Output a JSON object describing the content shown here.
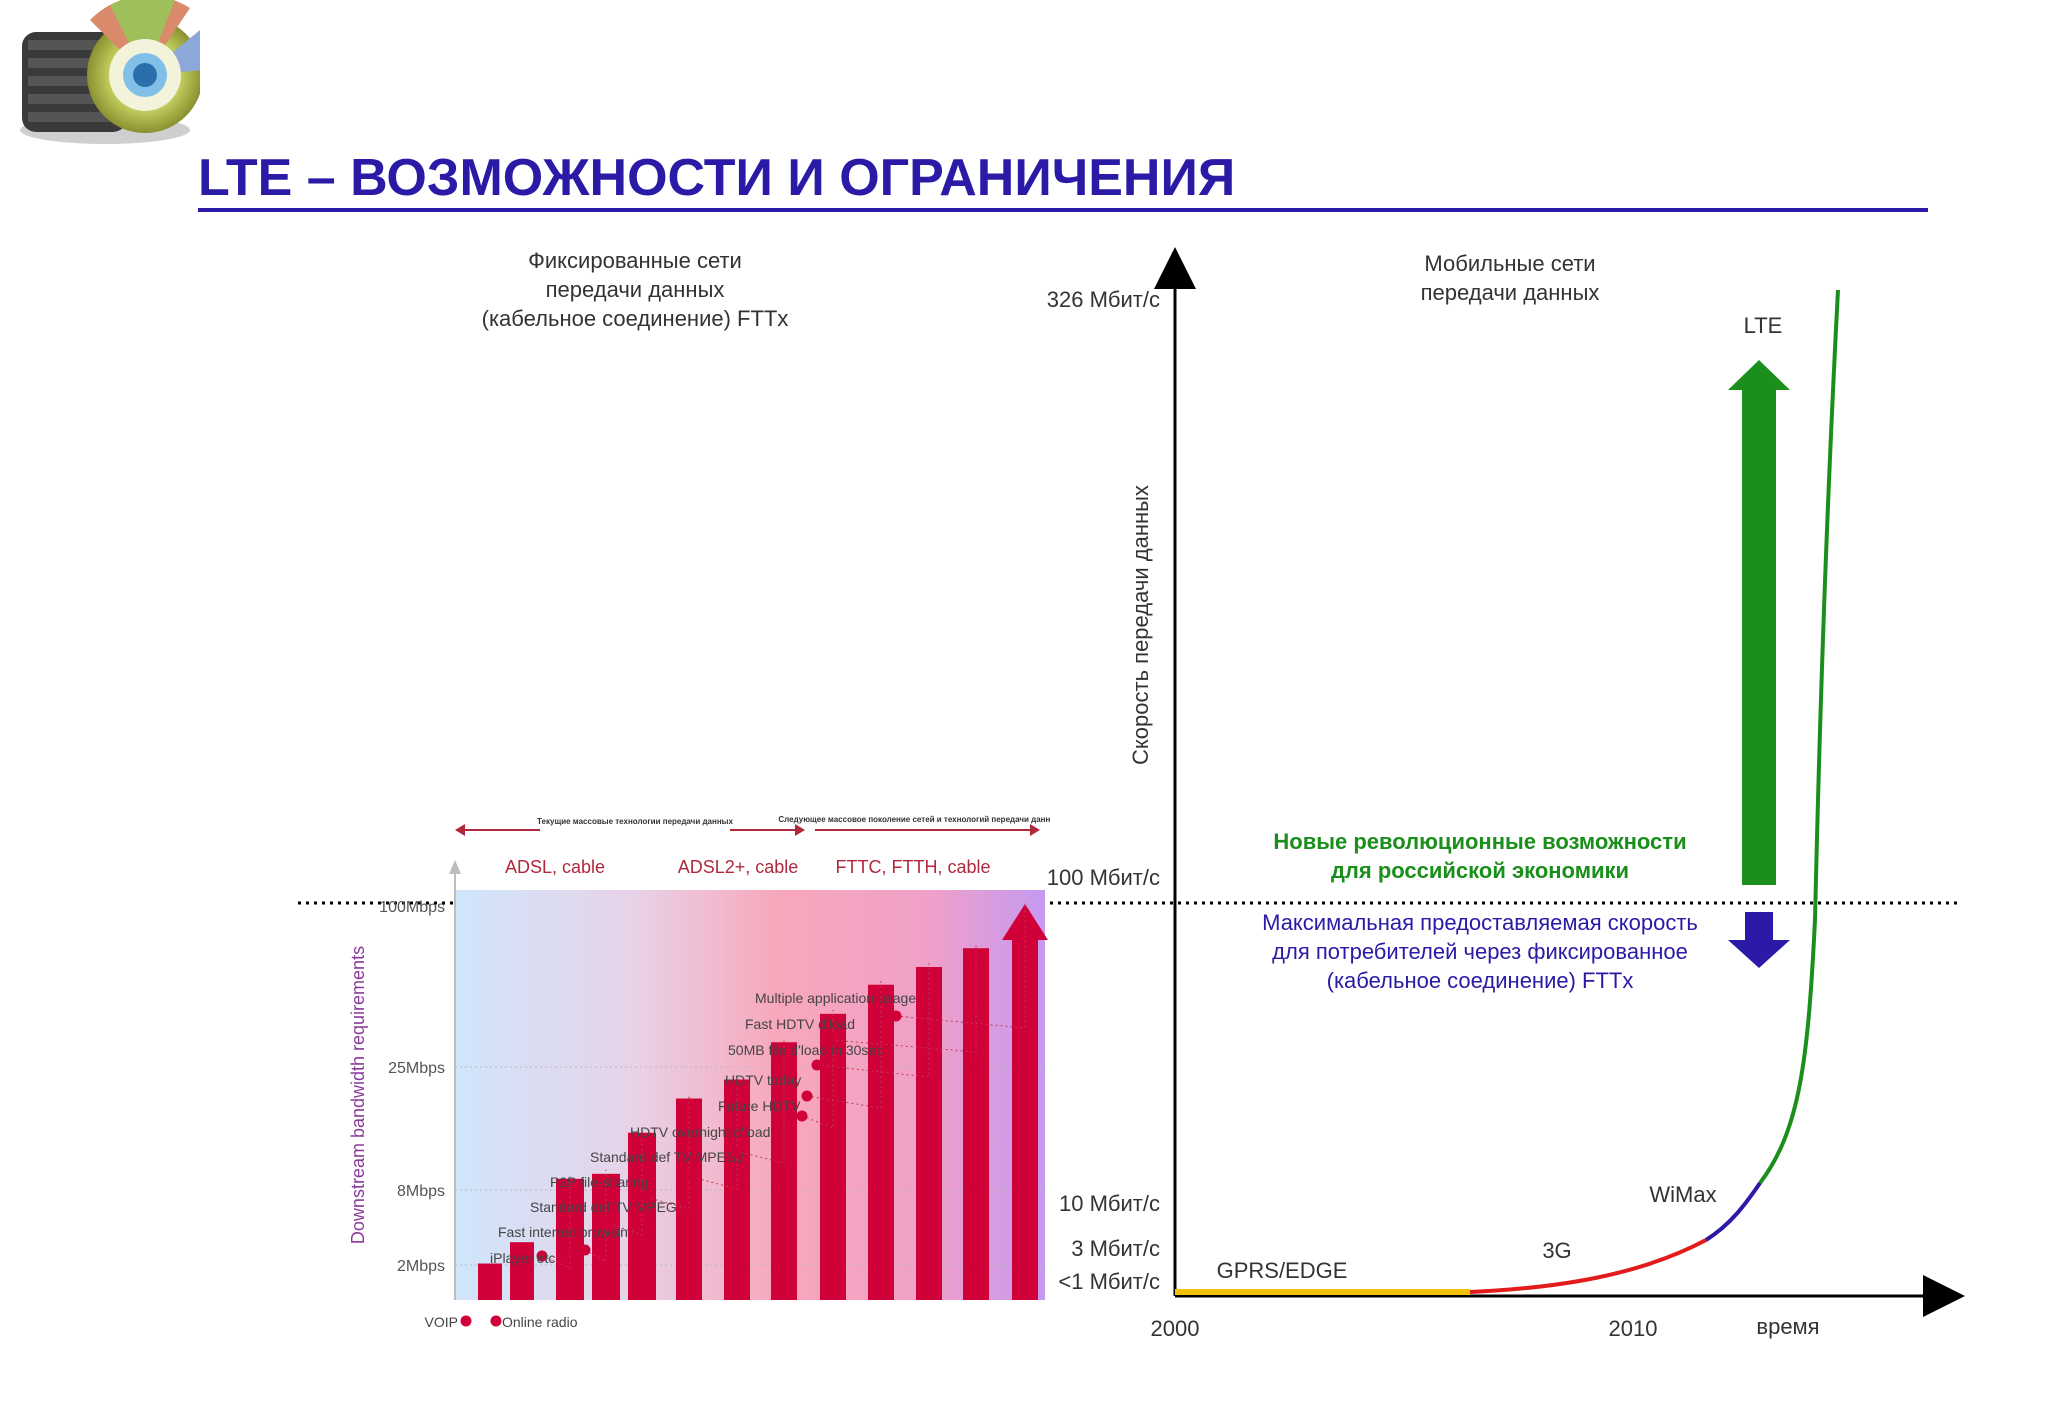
{
  "slide": {
    "title": "LTE – ВОЗМОЖНОСТИ И ОГРАНИЧЕНИЯ",
    "fixed_caption": [
      "Фиксированные сети",
      "передачи данных",
      "(кабельное соединение) FTTx"
    ],
    "mobile_caption": [
      "Мобильные сети",
      "передачи данных"
    ],
    "new_opportunities": [
      "Новые революционные возможности",
      "для российской экономики"
    ],
    "max_fixed_speed": [
      "Максимальная предоставляемая скорость",
      "для потребителей через фиксированное",
      "(кабельное соединение) FTTx"
    ],
    "colors": {
      "title": "#2a1aa6",
      "green": "#1b8f1b",
      "blue": "#2a1aa6",
      "bars": "#d00038"
    }
  },
  "chart_data": [
    {
      "type": "line",
      "title": "",
      "ylabel": "Скорость передачи данных",
      "xlabel": "время",
      "x_ticks": [
        "2000",
        "2010"
      ],
      "y_ticks": [
        "<1 Мбит/с",
        "3 Мбит/с",
        "10 Мбит/с",
        "100 Мбит/с",
        "326 Мбит/с"
      ],
      "segments": [
        {
          "name": "GPRS/EDGE",
          "color": "#f4c20d",
          "points": [
            [
              2000,
              0.5
            ],
            [
              2005,
              0.5
            ]
          ]
        },
        {
          "name": "3G",
          "color": "#e31b1b",
          "points": [
            [
              2005,
              0.5
            ],
            [
              2007,
              1.2
            ],
            [
              2009,
              2.2
            ],
            [
              2010.5,
              3.2
            ]
          ]
        },
        {
          "name": "WiMax",
          "color": "#2a1aa6",
          "points": [
            [
              2010.5,
              3.2
            ],
            [
              2011,
              5.5
            ],
            [
              2011.5,
              9
            ]
          ]
        },
        {
          "name": "LTE",
          "color": "#1b8f1b",
          "points": [
            [
              2011.5,
              9
            ],
            [
              2012,
              20
            ],
            [
              2012.3,
              60
            ],
            [
              2012.5,
              100
            ],
            [
              2012.7,
              200
            ],
            [
              2012.9,
              326
            ]
          ]
        }
      ],
      "reference_line": {
        "value": "100 Мбит/с",
        "style": "dotted"
      },
      "arrows": [
        {
          "direction": "up",
          "color": "#1b8f1b"
        },
        {
          "direction": "down",
          "color": "#2a1aa6"
        }
      ]
    },
    {
      "type": "bar",
      "title": "",
      "ylabel": "Downstream bandwidth requirements",
      "y_ticks": [
        "2Mbps",
        "8Mbps",
        "25Mbps",
        "100Mbps"
      ],
      "eras": [
        {
          "label": "ADSL, cable",
          "note": "Текущие массовые технологии передачи данных"
        },
        {
          "label": "ADSL2+, cable",
          "note": ""
        },
        {
          "label": "FTTC, FTTH, cable",
          "note": "Следующее массовое поколение сетей и технологий передачи данных"
        }
      ],
      "applications": [
        {
          "label": "VOIP",
          "value": 0.1
        },
        {
          "label": "Online radio",
          "value": 0.15
        },
        {
          "label": "iPlayer etc",
          "value": 0.5
        },
        {
          "label": "Fast internet browsing",
          "value": 0.55
        },
        {
          "label": "Standard def TV MPEG4",
          "value": 1.2
        },
        {
          "label": "P2P file-sharing",
          "value": 2.3
        },
        {
          "label": "Standard def TV MPEG2",
          "value": 3.3
        },
        {
          "label": "HDTV overnight d'load",
          "value": 6.7
        },
        {
          "label": "Future HDTV",
          "value": 11.5
        },
        {
          "label": "HDTV today",
          "value": 20
        },
        {
          "label": "50MB file d'load in 30sec",
          "value": 28
        },
        {
          "label": "Fast HDTV d'load",
          "value": 40
        },
        {
          "label": "Multiple application usage",
          "value": 100
        }
      ]
    }
  ]
}
